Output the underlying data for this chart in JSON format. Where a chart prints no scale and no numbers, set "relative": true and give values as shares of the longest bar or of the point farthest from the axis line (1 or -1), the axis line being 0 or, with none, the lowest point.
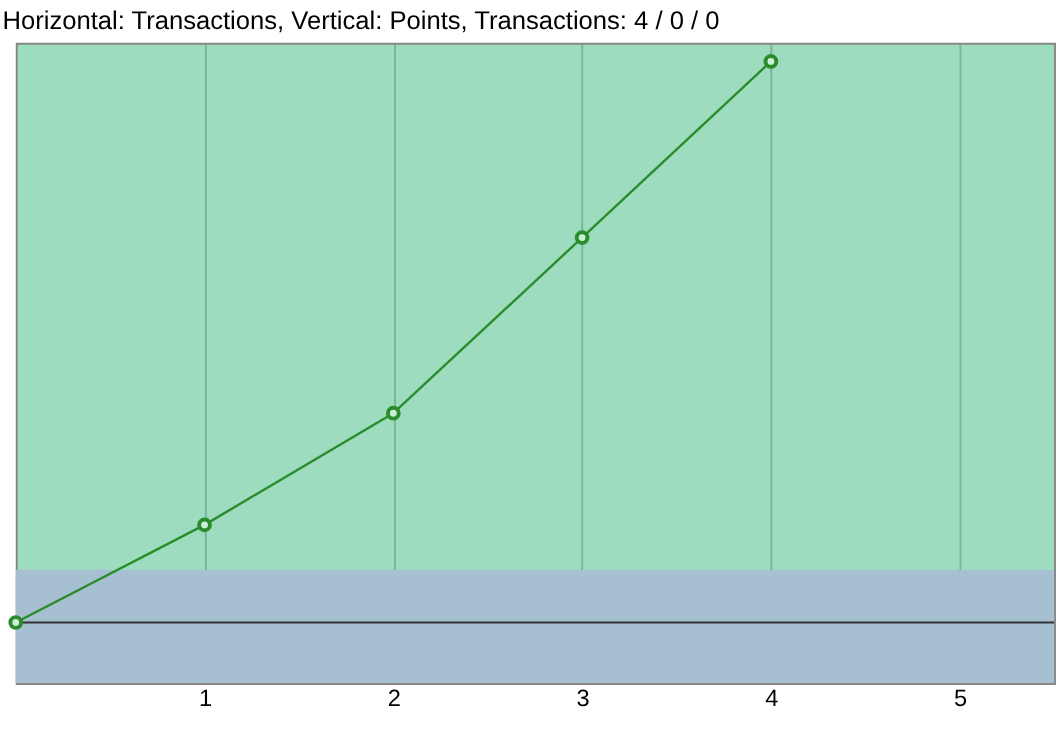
{
  "chart_data": {
    "type": "line",
    "title": "Horizontal: Transactions, Vertical: Points, Transactions: 4 / 0 / 0",
    "relative": true,
    "x": [
      0,
      1,
      2,
      3,
      4
    ],
    "series": [
      {
        "color": "#2a8c2a",
        "values": [
          0,
          0.174,
          0.373,
          0.686,
          1
        ]
      }
    ],
    "xlim": [
      0,
      5.5
    ],
    "xticks": [
      1,
      2,
      3,
      4,
      5
    ],
    "grid": "x",
    "marker": "circle",
    "line_style": "solid",
    "bands": [
      {
        "axis": "y",
        "from": -0.108,
        "to": 0.094,
        "color": "#a6c0d2"
      }
    ]
  }
}
